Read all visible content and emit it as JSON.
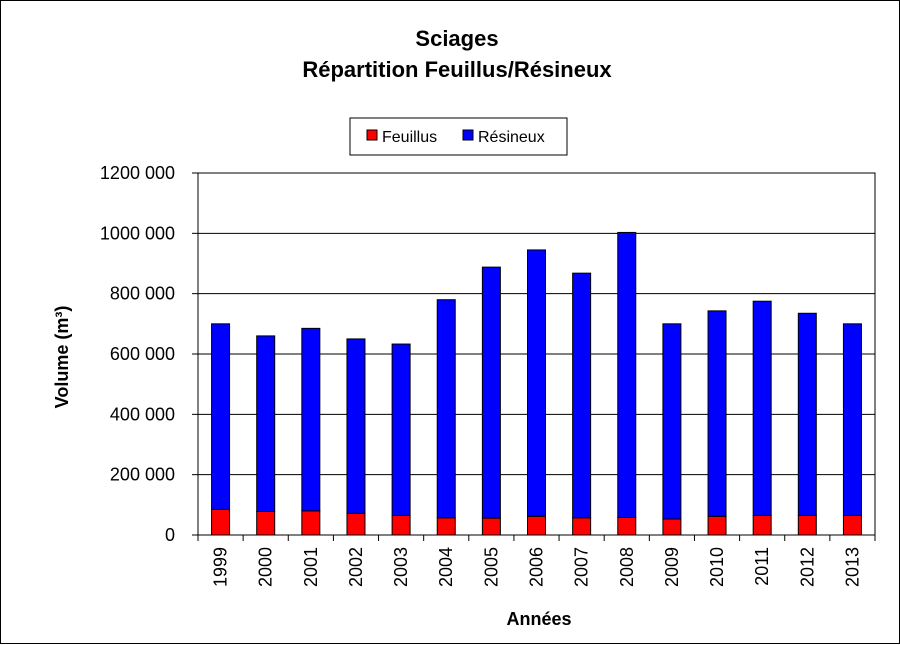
{
  "chart_data": {
    "type": "bar",
    "stacked": true,
    "title": "Sciages",
    "subtitle": "Répartition Feuillus/Résineux",
    "xlabel": "Années",
    "ylabel": "Volume (m³)",
    "ylim": [
      0,
      1200000
    ],
    "yticks": [
      0,
      200000,
      400000,
      600000,
      800000,
      1000000,
      1200000
    ],
    "ytick_labels": [
      "0",
      "200 000",
      "400 000",
      "600 000",
      "800 000",
      "1000 000",
      "1200 000"
    ],
    "categories": [
      "1999",
      "2000",
      "2001",
      "2002",
      "2003",
      "2004",
      "2005",
      "2006",
      "2007",
      "2008",
      "2009",
      "2010",
      "2011",
      "2012",
      "2013"
    ],
    "series": [
      {
        "name": "Feuillus",
        "color": "#ff0000",
        "values": [
          85000,
          78000,
          80000,
          72000,
          65000,
          57000,
          56000,
          62000,
          57000,
          58000,
          53000,
          62000,
          65000,
          65000,
          65000
        ]
      },
      {
        "name": "Résineux",
        "color": "#0000ff",
        "values": [
          615000,
          582000,
          605000,
          578000,
          568000,
          723000,
          832000,
          883000,
          811000,
          945000,
          647000,
          681000,
          710000,
          670000,
          635000
        ]
      }
    ],
    "grid": "horizontal major",
    "legend_position": "top"
  }
}
